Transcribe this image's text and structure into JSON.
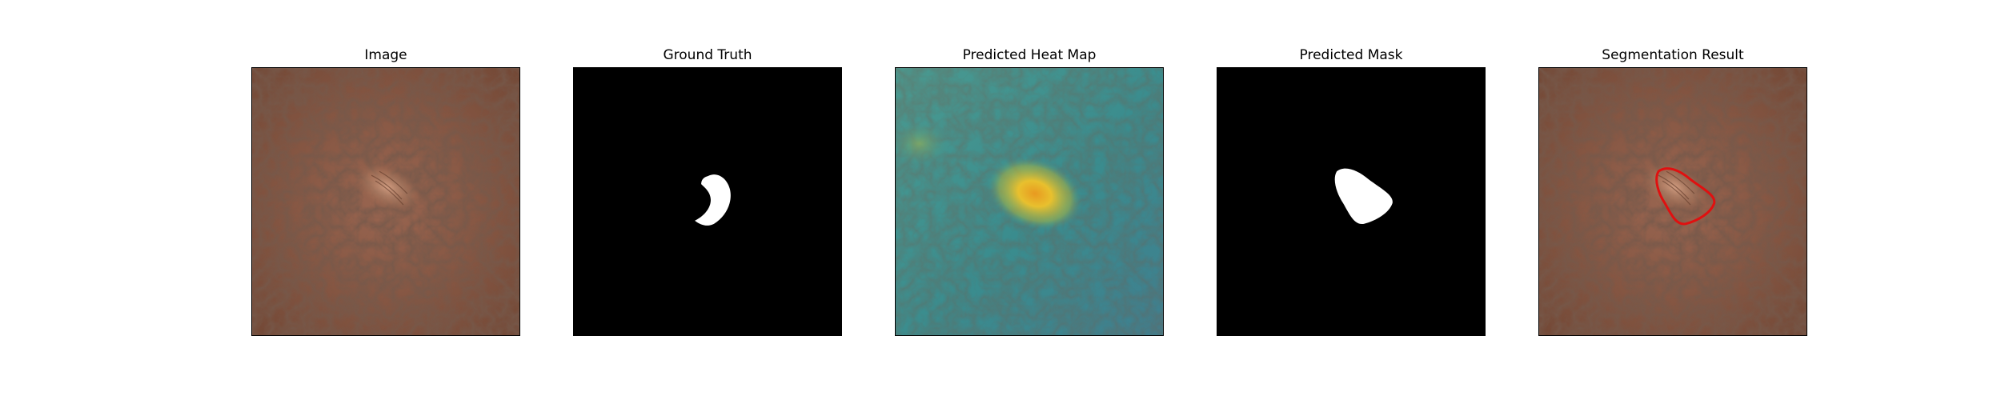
{
  "figure": {
    "panels": [
      {
        "id": "image",
        "title": "Image"
      },
      {
        "id": "ground-truth",
        "title": "Ground Truth"
      },
      {
        "id": "heat-map",
        "title": "Predicted Heat Map"
      },
      {
        "id": "predicted-mask",
        "title": "Predicted Mask"
      },
      {
        "id": "segmentation-result",
        "title": "Segmentation Result"
      }
    ]
  },
  "colors": {
    "leather": "#8a5a45",
    "mask_background": "#000000",
    "mask_foreground": "#ffffff",
    "heat_low": "#3e8f8f",
    "heat_high": "#e8b82e",
    "contour": "#e01010"
  }
}
